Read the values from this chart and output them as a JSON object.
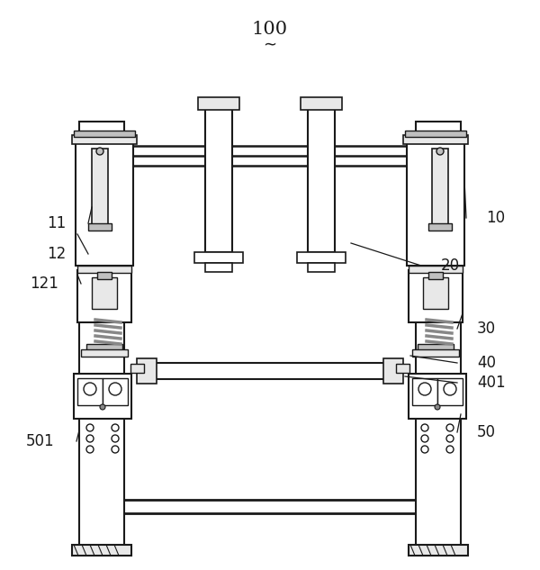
{
  "bg_color": "#ffffff",
  "line_color": "#1a1a1a",
  "fill_light": "#e8e8e8",
  "fill_mid": "#c0c0c0",
  "fill_dark": "#888888",
  "label_fontsize": 12,
  "title_fontsize": 15
}
